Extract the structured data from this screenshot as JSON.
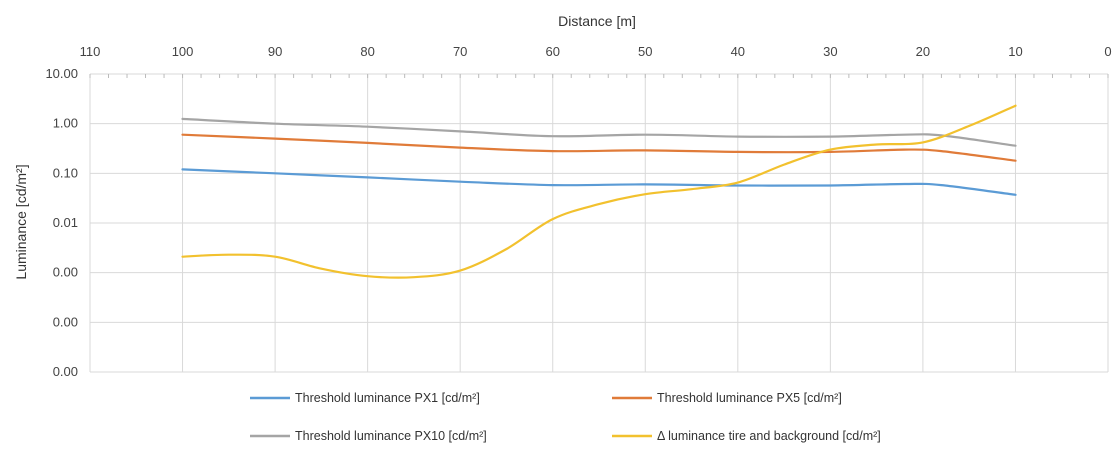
{
  "chart_data": {
    "type": "line",
    "xlabel": "Distance [m]",
    "ylabel": "Luminance [cd/m²]",
    "x_axis_position": "top",
    "x_reversed": true,
    "xlim": [
      110,
      0
    ],
    "x_ticks": [
      "110",
      "100",
      "90",
      "80",
      "70",
      "60",
      "50",
      "40",
      "30",
      "20",
      "10",
      "0"
    ],
    "y_scale": "log",
    "ylim": [
      1e-05,
      10
    ],
    "y_ticks": [
      {
        "value": 10,
        "label": "10.00"
      },
      {
        "value": 1,
        "label": "1.00"
      },
      {
        "value": 0.1,
        "label": "0.10"
      },
      {
        "value": 0.01,
        "label": "0.01"
      },
      {
        "value": 0.001,
        "label": "0.00"
      },
      {
        "value": 0.0001,
        "label": "0.00"
      },
      {
        "value": 1e-05,
        "label": "0.00"
      }
    ],
    "grid": true,
    "legend_position": "bottom",
    "series": [
      {
        "name": "Threshold luminance PX1 [cd/m²]",
        "color": "#5b9bd5",
        "points": [
          [
            100,
            0.12
          ],
          [
            90,
            0.1
          ],
          [
            80,
            0.083
          ],
          [
            70,
            0.068
          ],
          [
            60,
            0.058
          ],
          [
            50,
            0.06
          ],
          [
            40,
            0.057
          ],
          [
            30,
            0.057
          ],
          [
            22,
            0.061
          ],
          [
            18,
            0.058
          ],
          [
            10,
            0.037
          ]
        ]
      },
      {
        "name": "Threshold luminance PX5 [cd/m²]",
        "color": "#e07b39",
        "points": [
          [
            100,
            0.6
          ],
          [
            90,
            0.5
          ],
          [
            80,
            0.41
          ],
          [
            70,
            0.33
          ],
          [
            60,
            0.28
          ],
          [
            50,
            0.29
          ],
          [
            40,
            0.27
          ],
          [
            30,
            0.27
          ],
          [
            22,
            0.3
          ],
          [
            18,
            0.28
          ],
          [
            10,
            0.18
          ]
        ]
      },
      {
        "name": "Threshold luminance PX10 [cd/m²]",
        "color": "#a5a5a5",
        "points": [
          [
            100,
            1.25
          ],
          [
            90,
            1.0
          ],
          [
            80,
            0.87
          ],
          [
            70,
            0.7
          ],
          [
            60,
            0.56
          ],
          [
            50,
            0.6
          ],
          [
            40,
            0.55
          ],
          [
            30,
            0.55
          ],
          [
            22,
            0.6
          ],
          [
            18,
            0.58
          ],
          [
            10,
            0.36
          ]
        ]
      },
      {
        "name": "Δ luminance tire and background [cd/m²]",
        "color": "#f2c12e",
        "points": [
          [
            100,
            0.0021
          ],
          [
            95,
            0.0023
          ],
          [
            90,
            0.0021
          ],
          [
            85,
            0.0012
          ],
          [
            80,
            0.00085
          ],
          [
            75,
            0.00081
          ],
          [
            70,
            0.0011
          ],
          [
            65,
            0.003
          ],
          [
            60,
            0.012
          ],
          [
            55,
            0.024
          ],
          [
            50,
            0.038
          ],
          [
            45,
            0.048
          ],
          [
            40,
            0.065
          ],
          [
            35,
            0.15
          ],
          [
            30,
            0.3
          ],
          [
            25,
            0.38
          ],
          [
            20,
            0.42
          ],
          [
            15,
            0.9
          ],
          [
            10,
            2.3
          ]
        ]
      }
    ]
  }
}
